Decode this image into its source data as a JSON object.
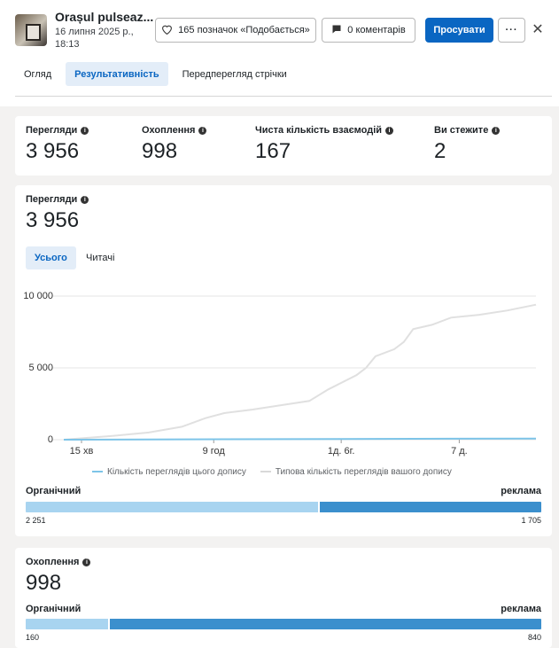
{
  "header": {
    "post_title": "Orașul pulseaz...",
    "post_date": "16 липня 2025 р., 18:13",
    "likes_label": "165 позначок «Подобається»",
    "comments_label": "0 коментарів",
    "promote_label": "Просувати",
    "more_label": "···",
    "close_label": "✕"
  },
  "tabs": [
    {
      "label": "Огляд",
      "active": false
    },
    {
      "label": "Результативність",
      "active": true
    },
    {
      "label": "Передперегляд стрічки",
      "active": false
    }
  ],
  "metrics": [
    {
      "label": "Перегляди",
      "value": "3 956"
    },
    {
      "label": "Охоплення",
      "value": "998"
    },
    {
      "label": "Чиста кількість взаємодій",
      "value": "167"
    },
    {
      "label": "Ви стежите",
      "value": "2"
    }
  ],
  "views_card": {
    "label": "Перегляди",
    "value": "3 956",
    "subtabs": [
      {
        "label": "Усього",
        "active": true
      },
      {
        "label": "Читачі",
        "active": false
      }
    ],
    "split": {
      "left_label": "Органічний",
      "right_label": "реклама",
      "organic": 2251,
      "ads": 1705,
      "organic_text": "2 251",
      "ads_text": "1 705"
    }
  },
  "reach_card": {
    "label": "Охоплення",
    "value": "998",
    "split": {
      "left_label": "Органічний",
      "right_label": "реклама",
      "organic": 160,
      "ads": 840,
      "organic_text": "160",
      "ads_text": "840"
    }
  },
  "colors": {
    "accent": "#0a66c2",
    "organic": "#a8d4f0",
    "ads": "#3b8fcd",
    "series_post": "#7dc4e8",
    "series_typical": "#e0e0e0"
  },
  "chart_data": {
    "type": "line",
    "x_ticks": [
      "15 хв",
      "9 год",
      "1д. 6г.",
      "7 д."
    ],
    "y_ticks": [
      "0",
      "5 000",
      "10 000"
    ],
    "ylim": [
      0,
      10000
    ],
    "grid": true,
    "legend_position": "bottom",
    "series": [
      {
        "name": "Кількість переглядів цього допису",
        "color": "#7dc4e8",
        "values": [
          [
            0,
            0
          ],
          [
            100,
            80
          ]
        ]
      },
      {
        "name": "Типова кількість переглядів вашого допису",
        "color": "#e0e0e0",
        "values": [
          [
            0,
            0
          ],
          [
            10,
            250
          ],
          [
            18,
            500
          ],
          [
            25,
            900
          ],
          [
            30,
            1500
          ],
          [
            34,
            1850
          ],
          [
            40,
            2100
          ],
          [
            46,
            2400
          ],
          [
            52,
            2700
          ],
          [
            56,
            3500
          ],
          [
            62,
            4500
          ],
          [
            64,
            5000
          ],
          [
            66,
            5800
          ],
          [
            70,
            6300
          ],
          [
            72,
            6800
          ],
          [
            74,
            7700
          ],
          [
            78,
            8000
          ],
          [
            82,
            8500
          ],
          [
            88,
            8700
          ],
          [
            94,
            9000
          ],
          [
            100,
            9400
          ]
        ]
      }
    ]
  }
}
